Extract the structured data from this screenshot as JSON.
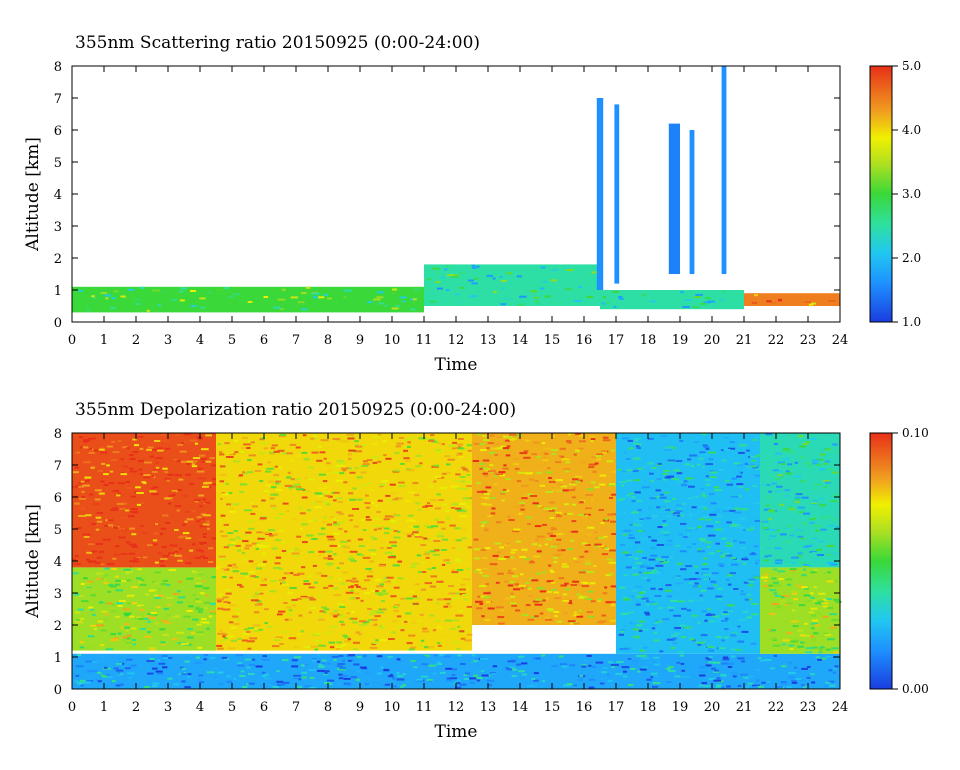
{
  "chart_data": [
    {
      "type": "heatmap",
      "title": "355nm Scattering ratio  20150925 (0:00-24:00)",
      "xlabel": "Time",
      "ylabel": "Altitude [km]",
      "xlim": [
        0,
        24
      ],
      "ylim": [
        0,
        8
      ],
      "x_ticks": [
        "0",
        "1",
        "2",
        "3",
        "4",
        "5",
        "6",
        "7",
        "8",
        "9",
        "10",
        "11",
        "12",
        "13",
        "14",
        "15",
        "16",
        "17",
        "18",
        "19",
        "20",
        "21",
        "22",
        "23",
        "24"
      ],
      "y_ticks": [
        "0",
        "1",
        "2",
        "3",
        "4",
        "5",
        "6",
        "7",
        "8"
      ],
      "colorbar": {
        "min": 1.0,
        "max": 5.0,
        "tick_labels": [
          "1.0",
          "2.0",
          "3.0",
          "4.0",
          "5.0"
        ],
        "tick_values": [
          1,
          2,
          3,
          4,
          5
        ]
      },
      "features": [
        {
          "t0": 0.0,
          "t1": 11.0,
          "z0": 0.3,
          "z1": 1.1,
          "value": 3.0
        },
        {
          "t0": 11.0,
          "t1": 16.5,
          "z0": 0.5,
          "z1": 1.8,
          "value": 2.5
        },
        {
          "t0": 16.5,
          "t1": 21.0,
          "z0": 0.4,
          "z1": 1.0,
          "value": 2.5
        },
        {
          "t0": 21.0,
          "t1": 24.0,
          "z0": 0.5,
          "z1": 0.9,
          "value": 4.5
        },
        {
          "t0": 16.4,
          "t1": 16.6,
          "z0": 1.0,
          "z1": 7.0,
          "value": 1.6
        },
        {
          "t0": 16.95,
          "t1": 17.1,
          "z0": 1.2,
          "z1": 6.8,
          "value": 1.6
        },
        {
          "t0": 18.65,
          "t1": 19.0,
          "z0": 1.5,
          "z1": 6.2,
          "value": 1.5
        },
        {
          "t0": 19.3,
          "t1": 19.45,
          "z0": 1.5,
          "z1": 6.0,
          "value": 1.6
        },
        {
          "t0": 20.3,
          "t1": 20.45,
          "z0": 1.5,
          "z1": 8.0,
          "value": 1.6
        }
      ]
    },
    {
      "type": "heatmap",
      "title": "355nm Depolarization ratio  20150925 (0:00-24:00)",
      "xlabel": "Time",
      "ylabel": "Altitude [km]",
      "xlim": [
        0,
        24
      ],
      "ylim": [
        0,
        8
      ],
      "x_ticks": [
        "0",
        "1",
        "2",
        "3",
        "4",
        "5",
        "6",
        "7",
        "8",
        "9",
        "10",
        "11",
        "12",
        "13",
        "14",
        "15",
        "16",
        "17",
        "18",
        "19",
        "20",
        "21",
        "22",
        "23",
        "24"
      ],
      "y_ticks": [
        "0",
        "1",
        "2",
        "3",
        "4",
        "5",
        "6",
        "7",
        "8"
      ],
      "colorbar": {
        "min": 0.0,
        "max": 0.1,
        "tick_labels": [
          "0.00",
          "0.10"
        ],
        "tick_values": [
          0.0,
          0.1
        ]
      },
      "features": [
        {
          "t0": 0.0,
          "t1": 24.0,
          "z0": 0.0,
          "z1": 1.1,
          "value": 0.02
        },
        {
          "t0": 0.0,
          "t1": 4.5,
          "z0": 1.2,
          "z1": 3.8,
          "value": 0.06
        },
        {
          "t0": 0.0,
          "t1": 4.5,
          "z0": 3.8,
          "z1": 8.0,
          "value": 0.095
        },
        {
          "t0": 4.5,
          "t1": 12.5,
          "z0": 1.2,
          "z1": 8.0,
          "value": 0.075
        },
        {
          "t0": 12.5,
          "t1": 17.0,
          "z0": 2.0,
          "z1": 8.0,
          "value": 0.08
        },
        {
          "t0": 17.0,
          "t1": 21.5,
          "z0": 1.1,
          "z1": 8.0,
          "value": 0.025
        },
        {
          "t0": 21.5,
          "t1": 24.0,
          "z0": 1.1,
          "z1": 3.8,
          "value": 0.06
        },
        {
          "t0": 21.5,
          "t1": 24.0,
          "z0": 3.8,
          "z1": 8.0,
          "value": 0.035
        }
      ]
    }
  ]
}
